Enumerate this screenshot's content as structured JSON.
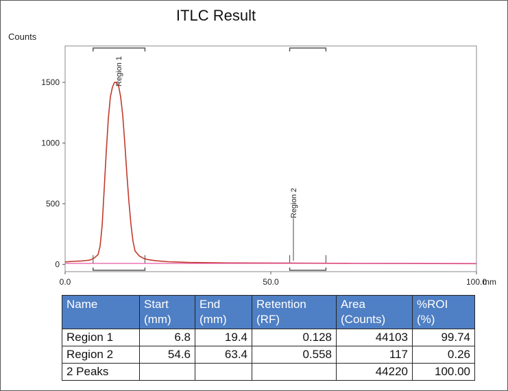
{
  "title": "ITLC Result",
  "chart_data": {
    "type": "line",
    "title": "ITLC Result",
    "ylabel": "Counts",
    "xlabel": "",
    "x_unit": "mm",
    "xlim": [
      0,
      100
    ],
    "ylim": [
      -60,
      1800
    ],
    "x_ticks": [
      {
        "value": 0,
        "label": "0.0"
      },
      {
        "value": 50,
        "label": "50.0"
      },
      {
        "value": 100,
        "label": "100.0"
      }
    ],
    "y_ticks": [
      {
        "value": 0,
        "label": "0"
      },
      {
        "value": 500,
        "label": "500"
      },
      {
        "value": 1000,
        "label": "1000"
      },
      {
        "value": 1500,
        "label": "1500"
      }
    ],
    "grid": false,
    "series": [
      {
        "color": "#c0392b",
        "x": [
          0,
          2,
          4,
          6,
          7,
          8,
          8.5,
          9,
          9.5,
          10,
          10.5,
          11,
          11.5,
          12,
          12.5,
          13,
          13.5,
          14,
          14.5,
          15,
          15.5,
          16,
          16.5,
          17,
          18,
          19,
          20,
          22,
          25,
          30,
          40,
          55,
          70,
          85,
          100
        ],
        "y": [
          20,
          25,
          28,
          35,
          50,
          80,
          150,
          320,
          620,
          930,
          1200,
          1380,
          1460,
          1500,
          1500,
          1470,
          1380,
          1230,
          1000,
          750,
          520,
          330,
          190,
          110,
          70,
          50,
          40,
          30,
          22,
          16,
          12,
          10,
          8,
          7,
          6
        ]
      },
      {
        "color": "#e75aa6",
        "x": [
          0,
          100
        ],
        "y": [
          8,
          8
        ]
      }
    ],
    "regions": [
      {
        "label": "Region 1",
        "start": 6.8,
        "end": 19.4,
        "marker_x": 13.0,
        "marker_y": 1500
      },
      {
        "label": "Region 2",
        "start": 54.6,
        "end": 63.4,
        "marker_x": 55.5,
        "marker_y": 0
      }
    ]
  },
  "table": {
    "headers": [
      [
        "Name",
        ""
      ],
      [
        "Start",
        "(mm)"
      ],
      [
        "End",
        "(mm)"
      ],
      [
        "Retention",
        "(RF)"
      ],
      [
        "Area",
        "(Counts)"
      ],
      [
        "%ROI",
        "(%)"
      ]
    ],
    "rows": [
      [
        "Region 1",
        "6.8",
        "19.4",
        "0.128",
        "44103",
        "99.74"
      ],
      [
        "Region 2",
        "54.6",
        "63.4",
        "0.558",
        "117",
        "0.26"
      ],
      [
        "2 Peaks",
        "",
        "",
        "",
        "44220",
        "100.00"
      ]
    ]
  }
}
